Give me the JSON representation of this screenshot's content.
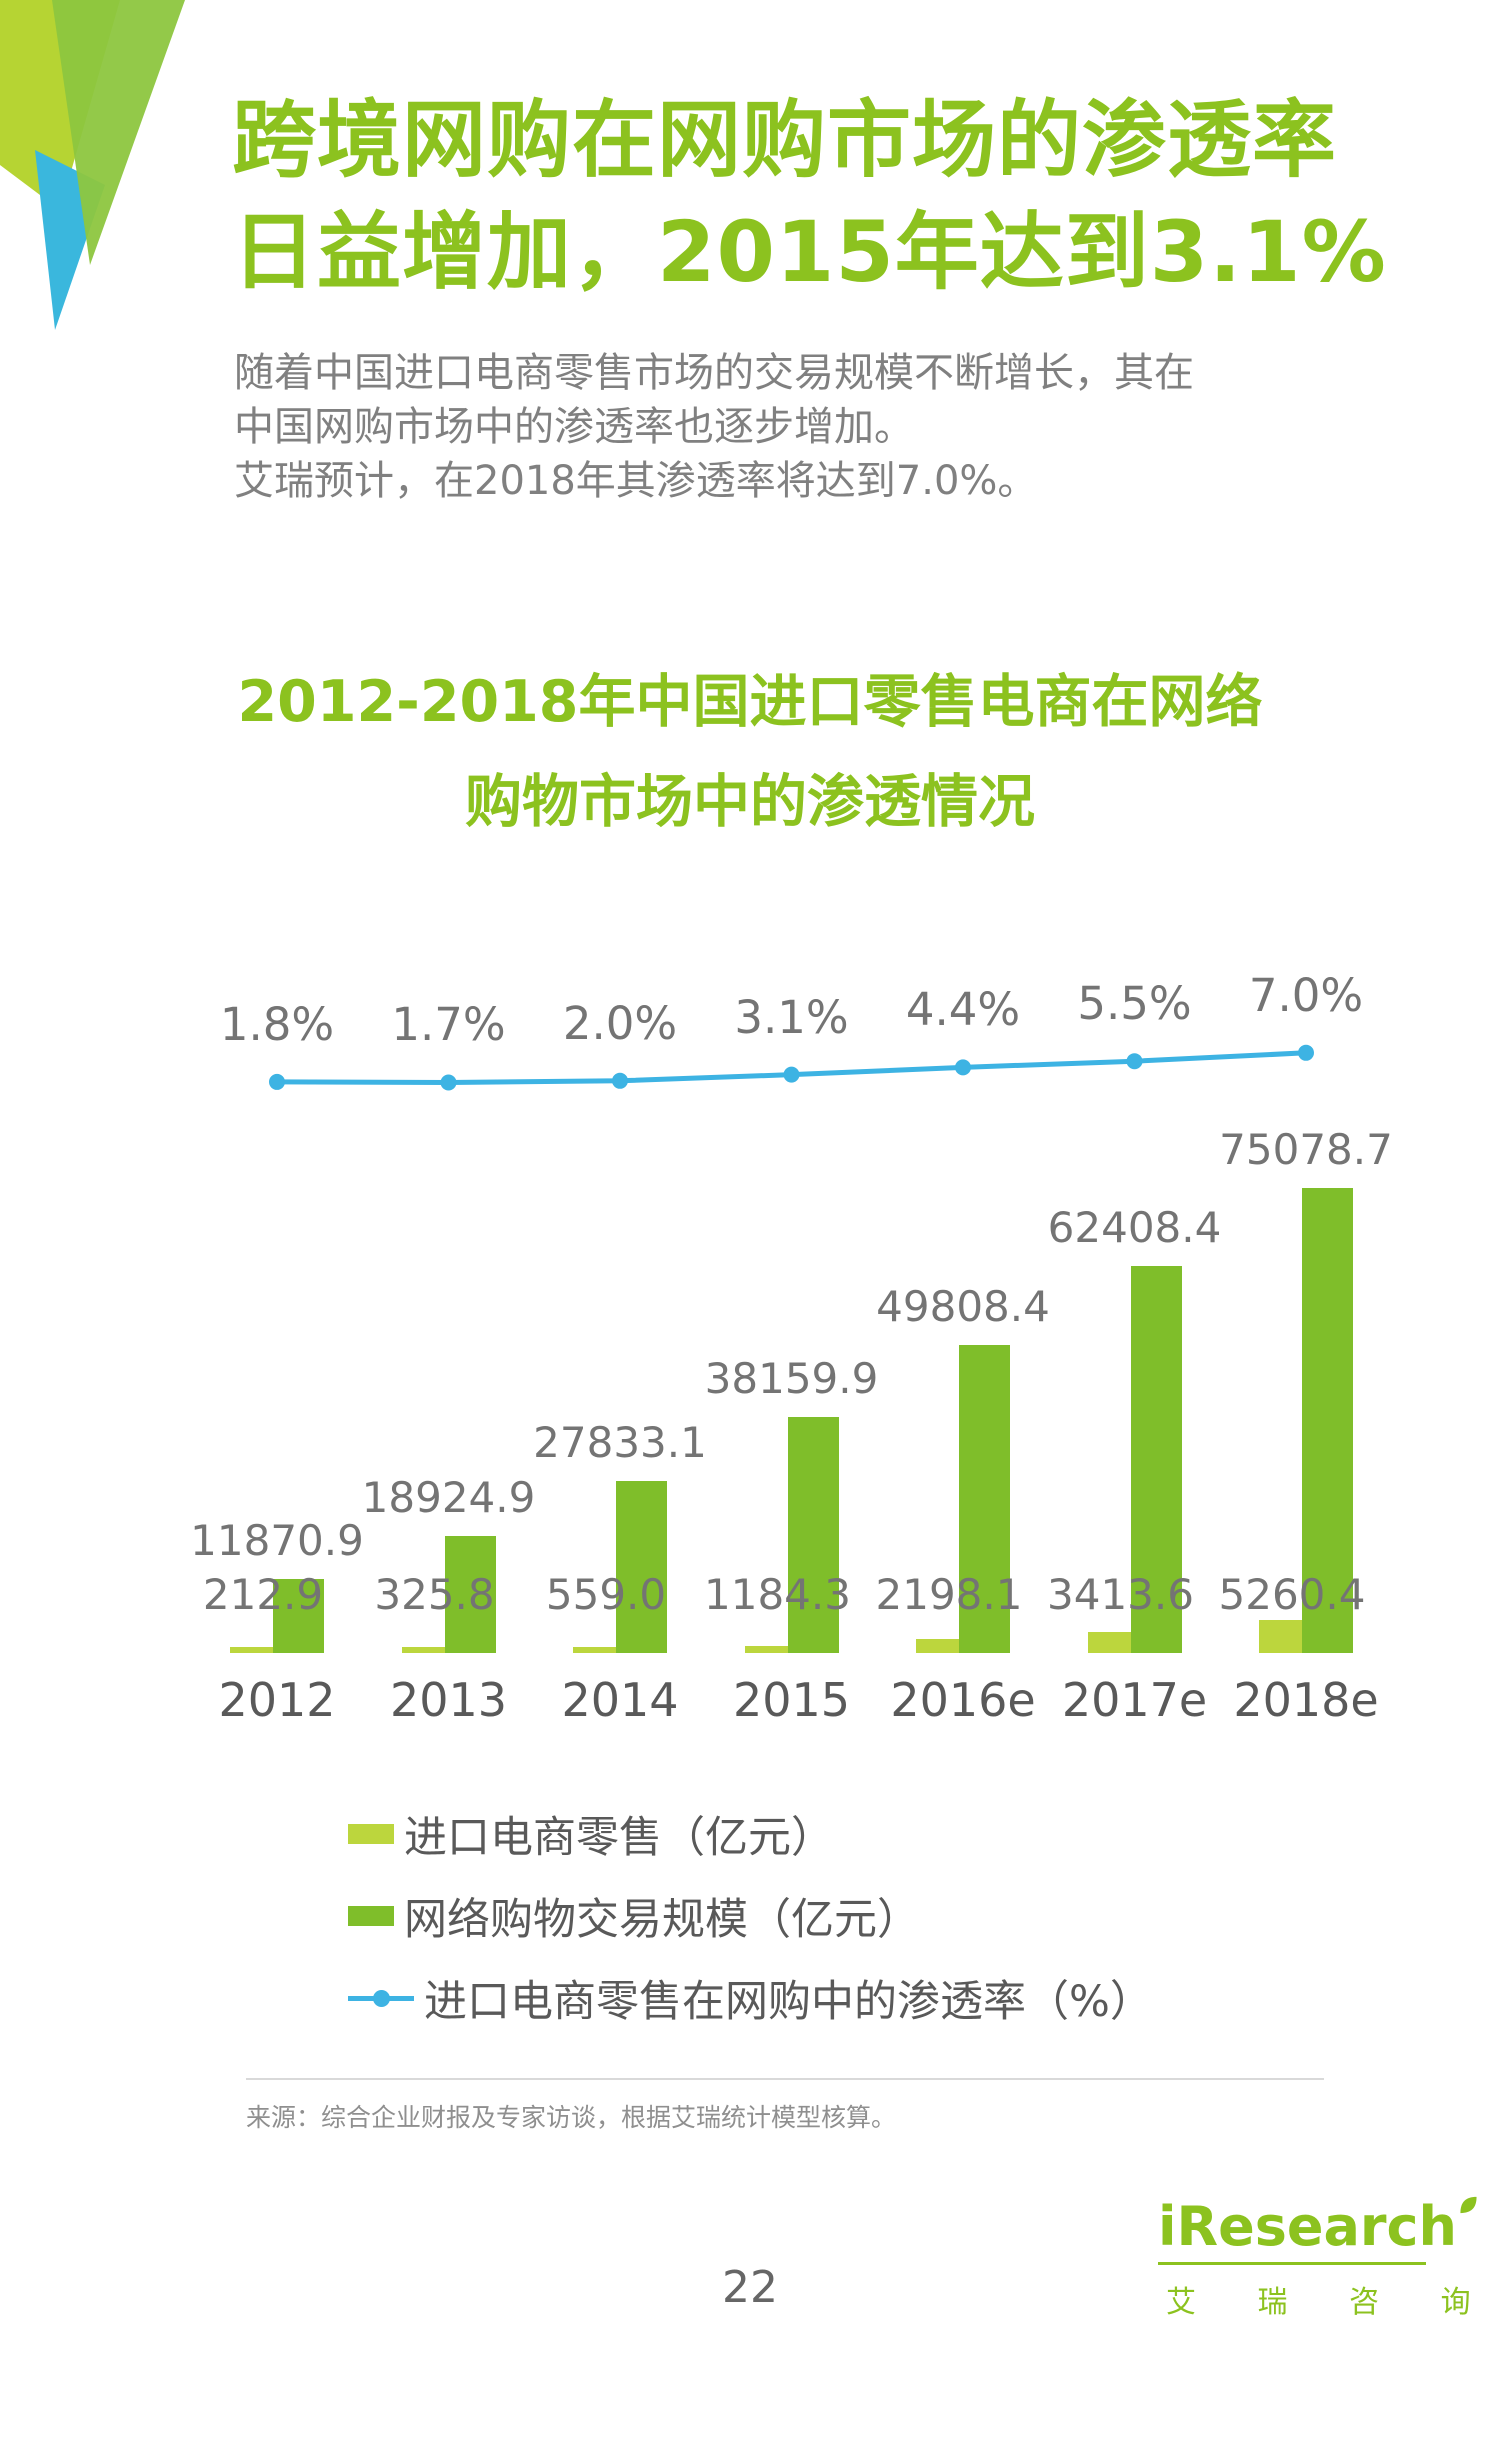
{
  "page": {
    "title": {
      "line1": "跨境网购在网购市场的渗透率",
      "line2": "日益增加，2015年达到3.1%"
    },
    "intro": {
      "line1": "随着中国进口电商零售市场的交易规模不断增长，其在",
      "line2": "中国网购市场中的渗透率也逐步增加。",
      "line3": "艾瑞预计，在2018年其渗透率将达到7.0%。"
    },
    "source_note": "来源：综合企业财报及专家访谈，根据艾瑞统计模型核算。",
    "page_number": "22"
  },
  "chart_data": {
    "type": "bar+line",
    "title": {
      "line1": "2012-2018年中国进口零售电商在网络",
      "line2": "购物市场中的渗透情况"
    },
    "categories": [
      "2012",
      "2013",
      "2014",
      "2015",
      "2016e",
      "2017e",
      "2018e"
    ],
    "series": [
      {
        "name": "进口电商零售（亿元）",
        "type": "bar",
        "color": "#bcd63d",
        "values": [
          212.9,
          325.8,
          559.0,
          1184.3,
          2198.1,
          3413.6,
          5260.4
        ]
      },
      {
        "name": "网络购物交易规模（亿元）",
        "type": "bar",
        "color": "#7fbe2a",
        "values": [
          11870.9,
          18924.9,
          27833.1,
          38159.9,
          49808.4,
          62408.4,
          75078.7
        ]
      },
      {
        "name": "进口电商零售在网购中的渗透率（%）",
        "type": "line",
        "color": "#3db3e3",
        "unit": "%",
        "values": [
          1.8,
          1.7,
          2.0,
          3.1,
          4.4,
          5.5,
          7.0
        ]
      }
    ],
    "value_labels": true,
    "legend_position": "bottom-left",
    "grid": false
  },
  "logo": {
    "brand": "iResearch",
    "brand_cn": "艾 瑞 咨 询"
  },
  "colors": {
    "title_green": "#8cc21f",
    "bar_green": "#7fbe2a",
    "bar_light_green": "#bcd63d",
    "line_cyan": "#3db3e3",
    "deco_light_green": "#b6d433",
    "deco_green": "#8dc63f",
    "deco_cyan": "#3ab7dd",
    "body_gray": "#808080",
    "label_gray": "#747474"
  }
}
